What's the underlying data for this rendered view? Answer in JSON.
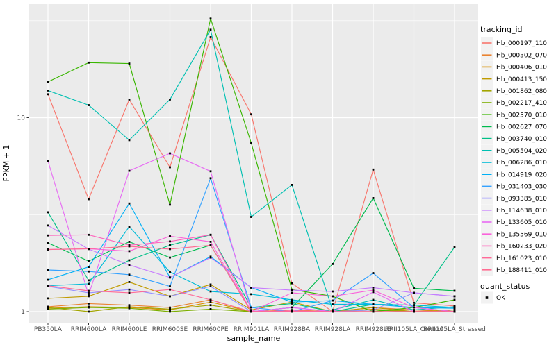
{
  "colors": {
    "panel_bg": "#EBEBEB",
    "grid": "#FFFFFF",
    "tick_text": "#4D4D4D",
    "axis_text": "#000000",
    "legend_key_bg": "#F2F2F2",
    "point": "#000000"
  },
  "chart_data": {
    "type": "line",
    "title": "",
    "xlabel": "sample_name",
    "ylabel": "FPKM + 1",
    "y_scale": "log10",
    "y_ticks": [
      1,
      10
    ],
    "ylim": [
      0.88,
      38.5
    ],
    "grid": true,
    "point_marker": "black-square",
    "x_categories": [
      "PB350LA",
      "RRIM600LA",
      "RRIM600LE",
      "RRIM600SE",
      "RRIM600PE",
      "RRIM901LA",
      "RRIM928BA",
      "RRIM928LA",
      "RRIM928LE",
      "RRII105LA_Control",
      "RRII105LA_Stressed"
    ],
    "legend": {
      "position": "right",
      "series_title": "tracking_id",
      "shape_title": "quant_status",
      "shape_label": "OK"
    },
    "series": [
      {
        "name": "Hb_000197_110",
        "color": "#F8766D",
        "values": [
          13.2,
          3.8,
          12.4,
          5.55,
          26.0,
          10.4,
          1.4,
          1.0,
          5.4,
          1.11,
          1.07
        ]
      },
      {
        "name": "Hb_000302_070",
        "color": "#EA8331",
        "values": [
          1.06,
          1.1,
          1.08,
          1.05,
          1.15,
          1.0,
          1.02,
          1.0,
          1.05,
          1.02,
          1.0
        ]
      },
      {
        "name": "Hb_000406_010",
        "color": "#D89000",
        "values": [
          1.04,
          1.06,
          1.05,
          1.02,
          1.12,
          1.0,
          1.0,
          1.0,
          1.03,
          1.0,
          1.0
        ]
      },
      {
        "name": "Hb_000413_150",
        "color": "#C09B00",
        "values": [
          1.17,
          1.2,
          1.42,
          1.2,
          1.38,
          1.02,
          1.12,
          1.0,
          1.05,
          1.0,
          1.02
        ]
      },
      {
        "name": "Hb_001862_080",
        "color": "#A3A500",
        "values": [
          1.05,
          1.0,
          1.06,
          1.03,
          1.08,
          1.0,
          1.0,
          1.0,
          1.0,
          1.0,
          1.0
        ]
      },
      {
        "name": "Hb_002217_410",
        "color": "#7CAE00",
        "values": [
          1.03,
          1.05,
          1.04,
          1.0,
          1.03,
          1.0,
          1.0,
          1.0,
          1.02,
          1.0,
          1.0
        ]
      },
      {
        "name": "Hb_002570_010",
        "color": "#39B600",
        "values": [
          15.3,
          19.2,
          19.0,
          3.56,
          32.4,
          7.4,
          1.3,
          1.2,
          1.0,
          1.05,
          1.15
        ]
      },
      {
        "name": "Hb_002627_070",
        "color": "#00BB4E",
        "values": [
          2.26,
          1.82,
          2.29,
          1.9,
          2.2,
          1.0,
          1.05,
          1.76,
          3.85,
          1.32,
          1.28
        ]
      },
      {
        "name": "Hb_003740_010",
        "color": "#00C087",
        "values": [
          3.25,
          1.45,
          1.84,
          2.2,
          2.49,
          1.05,
          1.1,
          1.0,
          1.09,
          1.08,
          2.15
        ]
      },
      {
        "name": "Hb_005504_020",
        "color": "#00C0B2",
        "values": [
          13.8,
          11.6,
          7.66,
          12.4,
          28.4,
          3.08,
          4.5,
          1.02,
          1.15,
          1.02,
          1.06
        ]
      },
      {
        "name": "Hb_006286_010",
        "color": "#00BCD8",
        "values": [
          1.36,
          1.39,
          2.74,
          1.6,
          1.27,
          1.23,
          1.15,
          1.09,
          1.09,
          1.08,
          1.05
        ]
      },
      {
        "name": "Hb_014919_020",
        "color": "#00B0F6",
        "values": [
          1.46,
          1.7,
          3.61,
          1.5,
          1.92,
          1.33,
          1.12,
          1.14,
          1.09,
          1.05,
          1.04
        ]
      },
      {
        "name": "Hb_031403_030",
        "color": "#35A2FF",
        "values": [
          1.64,
          1.61,
          1.55,
          1.35,
          4.87,
          1.05,
          1.0,
          1.14,
          1.58,
          1.05,
          1.0
        ]
      },
      {
        "name": "Hb_093385_010",
        "color": "#9590FF",
        "values": [
          1.35,
          1.25,
          1.3,
          1.2,
          1.35,
          1.0,
          1.05,
          1.0,
          1.02,
          1.25,
          1.2
        ]
      },
      {
        "name": "Hb_114638_010",
        "color": "#C77CFF",
        "values": [
          2.78,
          2.1,
          1.74,
          1.5,
          1.9,
          1.33,
          1.29,
          1.27,
          1.33,
          1.25,
          1.2
        ]
      },
      {
        "name": "Hb_133605_010",
        "color": "#E76BF3",
        "values": [
          5.97,
          1.22,
          5.32,
          6.54,
          5.29,
          1.0,
          1.05,
          1.0,
          1.26,
          1.0,
          1.0
        ]
      },
      {
        "name": "Hb_135569_010",
        "color": "#FA62DB",
        "values": [
          2.09,
          2.11,
          2.05,
          2.45,
          2.29,
          1.0,
          1.25,
          1.2,
          1.29,
          1.05,
          1.0
        ]
      },
      {
        "name": "Hb_160233_020",
        "color": "#FF62BC",
        "values": [
          2.47,
          2.49,
          2.2,
          2.3,
          2.49,
          1.0,
          1.01,
          1.0,
          1.0,
          1.0,
          1.0
        ]
      },
      {
        "name": "Hb_161023_010",
        "color": "#FF6A98",
        "values": [
          1.36,
          1.28,
          1.25,
          1.3,
          1.15,
          1.0,
          1.0,
          1.0,
          1.0,
          1.0,
          1.0
        ]
      },
      {
        "name": "Hb_188411_010",
        "color": "#FF6C92",
        "values": [
          2.09,
          2.11,
          2.17,
          2.1,
          2.2,
          1.0,
          1.0,
          1.0,
          1.0,
          1.0,
          1.0
        ]
      }
    ]
  }
}
